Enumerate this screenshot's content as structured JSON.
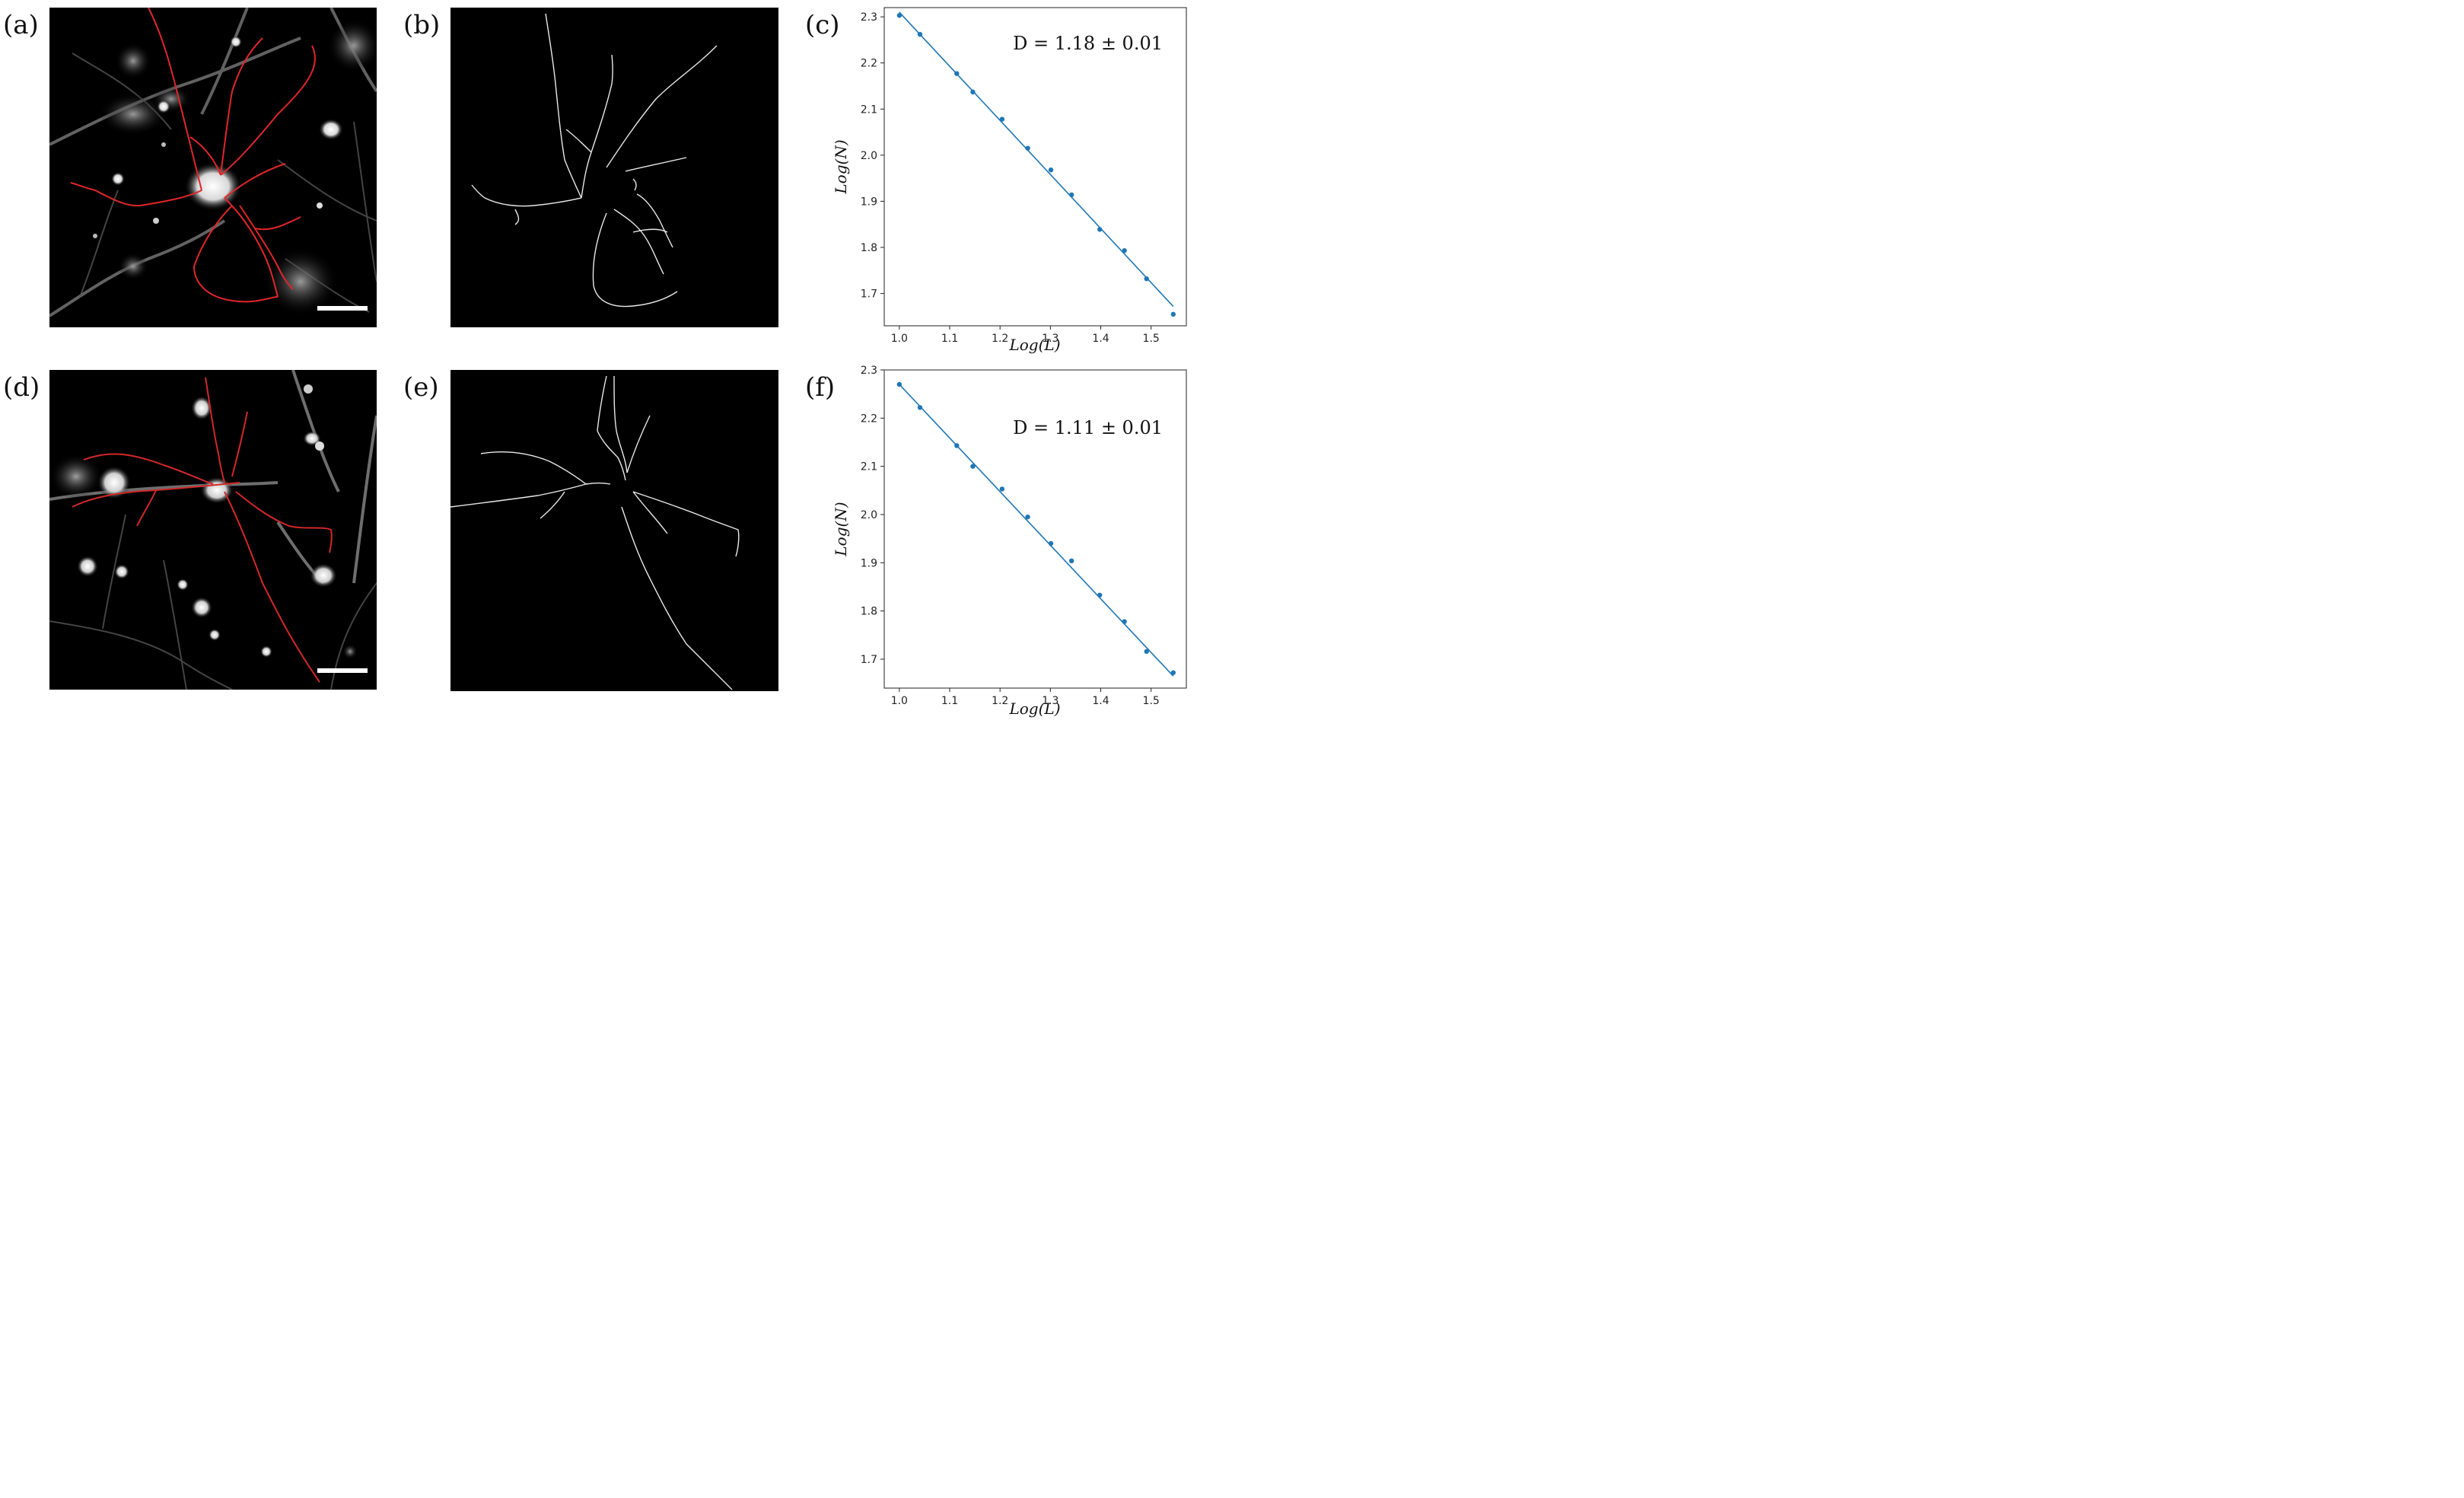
{
  "panels": {
    "a": {
      "label": "(a)"
    },
    "b": {
      "label": "(b)"
    },
    "c": {
      "label": "(c)"
    },
    "d": {
      "label": "(d)"
    },
    "e": {
      "label": "(e)"
    },
    "f": {
      "label": "(f)"
    }
  },
  "chart_data": [
    {
      "type": "scatter",
      "panel": "c",
      "xlabel": "Log(L)",
      "ylabel": "Log(N)",
      "annotation": "D = 1.18 ± 0.01",
      "xlim": [
        0.97,
        1.57
      ],
      "ylim": [
        1.63,
        2.32
      ],
      "xticks": [
        1.0,
        1.1,
        1.2,
        1.3,
        1.4,
        1.5
      ],
      "yticks": [
        1.7,
        1.8,
        1.9,
        2.0,
        2.1,
        2.2,
        2.3
      ],
      "tick_labels_x": [
        "1.0",
        "1.1",
        "1.2",
        "1.3",
        "1.4",
        "1.5"
      ],
      "tick_labels_y": [
        "1.7",
        "1.8",
        "1.9",
        "2.0",
        "2.1",
        "2.2",
        "2.3"
      ],
      "points": {
        "x": [
          1.0,
          1.041,
          1.114,
          1.146,
          1.204,
          1.255,
          1.301,
          1.342,
          1.398,
          1.447,
          1.491,
          1.544
        ],
        "y": [
          2.303,
          2.262,
          2.177,
          2.137,
          2.078,
          2.015,
          1.968,
          1.914,
          1.839,
          1.793,
          1.732,
          1.655
        ]
      },
      "fit_line": {
        "x": [
          1.0,
          1.544
        ],
        "y": [
          2.31,
          1.672
        ]
      },
      "color": "#1f77b4",
      "grid": false
    },
    {
      "type": "scatter",
      "panel": "f",
      "xlabel": "Log(L)",
      "ylabel": "Log(N)",
      "annotation": "D = 1.11 ± 0.01",
      "xlim": [
        0.97,
        1.57
      ],
      "ylim": [
        1.64,
        2.3
      ],
      "xticks": [
        1.0,
        1.1,
        1.2,
        1.3,
        1.4,
        1.5
      ],
      "yticks": [
        1.7,
        1.8,
        1.9,
        2.0,
        2.1,
        2.2,
        2.3
      ],
      "tick_labels_x": [
        "1.0",
        "1.1",
        "1.2",
        "1.3",
        "1.4",
        "1.5"
      ],
      "tick_labels_y": [
        "1.7",
        "1.8",
        "1.9",
        "2.0",
        "2.1",
        "2.2",
        "2.3"
      ],
      "points": {
        "x": [
          1.0,
          1.041,
          1.114,
          1.146,
          1.204,
          1.255,
          1.301,
          1.342,
          1.398,
          1.447,
          1.491,
          1.544
        ],
        "y": [
          2.27,
          2.222,
          2.143,
          2.1,
          2.053,
          1.995,
          1.94,
          1.904,
          1.833,
          1.778,
          1.716,
          1.672
        ]
      },
      "fit_line": {
        "x": [
          1.0,
          1.544
        ],
        "y": [
          2.27,
          1.665
        ]
      },
      "color": "#1f77b4",
      "grid": false
    }
  ]
}
